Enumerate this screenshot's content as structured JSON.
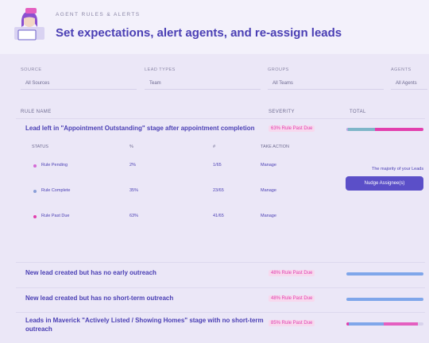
{
  "header": {
    "eyebrow": "AGENT RULES & ALERTS",
    "title": "Set expectations, alert agents, and re-assign leads"
  },
  "filters": [
    {
      "label": "SOURCE",
      "value": "All Sources"
    },
    {
      "label": "LEAD TYPES",
      "value": "Team"
    },
    {
      "label": "GROUPS",
      "value": "All Teams"
    },
    {
      "label": "AGENTS",
      "value": "All Agents"
    }
  ],
  "table": {
    "columns": [
      "RULE NAME",
      "SEVERITY",
      "TOTAL"
    ],
    "rules": [
      {
        "name": "Lead left in \"Appointment Outstanding\" stage after appointment completion",
        "severity": "63% Rule Past Due",
        "bar": [
          {
            "value": 2,
            "color": "#b9a6e6"
          },
          {
            "value": 35,
            "color": "#7fb6c9"
          },
          {
            "value": 63,
            "color": "#e23fae"
          }
        ]
      },
      {
        "name": "New lead created but has no early outreach",
        "severity": "48% Rule Past Due",
        "bar": [
          {
            "value": 100,
            "color": "#7fa6ea"
          }
        ]
      },
      {
        "name": "New lead created but has no short-term outreach",
        "severity": "48% Rule Past Due",
        "bar": [
          {
            "value": 100,
            "color": "#7fa6ea"
          }
        ]
      },
      {
        "name": "Leads in Maverick \"Actively Listed / Showing Homes\" stage with no short-term outreach",
        "severity": "85% Rule Past Due",
        "bar": [
          {
            "value": 3,
            "color": "#e23fae"
          },
          {
            "value": 45,
            "color": "#7fa6ea"
          },
          {
            "value": 45,
            "color": "#e45fc0"
          }
        ]
      }
    ],
    "detail": {
      "columns": [
        "STATUS",
        "%",
        "#",
        "TAKE ACTION"
      ],
      "rows": [
        {
          "status": "Rule Pending",
          "percent": "2%",
          "count": "1/65",
          "action": "Manage"
        },
        {
          "status": "Rule Complete",
          "percent": "35%",
          "count": "23/65",
          "action": "Manage"
        },
        {
          "status": "Rule Past Due",
          "percent": "63%",
          "count": "41/65",
          "action": "Manage"
        }
      ],
      "note": "The majority of your Leads",
      "button": "Nudge Assignee(s)"
    }
  }
}
